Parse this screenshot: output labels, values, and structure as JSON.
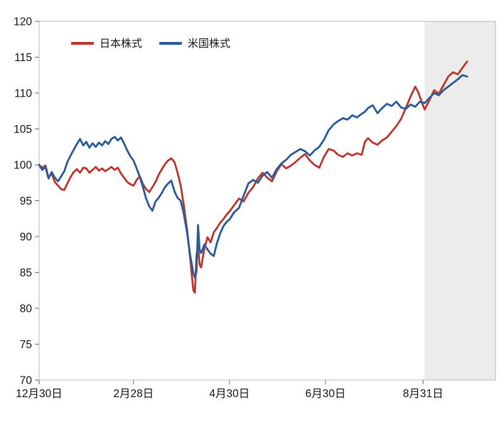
{
  "chart_data": {
    "type": "line",
    "title": "",
    "xlabel": "",
    "ylabel": "",
    "x_axis": {
      "unit": "days_from_dec30",
      "domain": [
        0,
        290
      ],
      "ticks": [
        {
          "x": 0,
          "label": "12月30日"
        },
        {
          "x": 60,
          "label": "2月28日"
        },
        {
          "x": 121,
          "label": "4月30日"
        },
        {
          "x": 182,
          "label": "6月30日"
        },
        {
          "x": 244,
          "label": "8月31日"
        }
      ]
    },
    "y_axis": {
      "domain": [
        70,
        120
      ],
      "ticks": [
        70,
        75,
        80,
        85,
        90,
        95,
        100,
        105,
        110,
        115,
        120
      ]
    },
    "grid": "off",
    "legend_position": "top-left-inside",
    "shaded_region": {
      "from": 245,
      "to": 290,
      "color": "#ececec"
    },
    "colors": {
      "japan": "#c0392f",
      "us": "#2e5d9e",
      "plot_border": "#bdbdbd",
      "tick": "#6e6e6e"
    },
    "legend": [
      {
        "id": "japan",
        "label": "日本株式",
        "color": "#c0392f"
      },
      {
        "id": "us",
        "label": "米国株式",
        "color": "#2e5d9e"
      }
    ],
    "series": [
      {
        "id": "japan-stocks",
        "name": "日本株式",
        "color": "#c0392f",
        "points": [
          [
            0,
            100.0
          ],
          [
            2,
            99.6
          ],
          [
            4,
            99.9
          ],
          [
            6,
            98.2
          ],
          [
            8,
            98.8
          ],
          [
            10,
            97.6
          ],
          [
            12,
            97.1
          ],
          [
            14,
            96.6
          ],
          [
            16,
            96.5
          ],
          [
            18,
            97.4
          ],
          [
            20,
            98.3
          ],
          [
            22,
            99.0
          ],
          [
            24,
            99.4
          ],
          [
            26,
            98.9
          ],
          [
            28,
            99.6
          ],
          [
            30,
            99.5
          ],
          [
            32,
            98.9
          ],
          [
            34,
            99.3
          ],
          [
            36,
            99.7
          ],
          [
            38,
            99.2
          ],
          [
            40,
            99.5
          ],
          [
            42,
            99.1
          ],
          [
            44,
            99.4
          ],
          [
            46,
            99.7
          ],
          [
            48,
            99.3
          ],
          [
            50,
            99.6
          ],
          [
            52,
            98.8
          ],
          [
            54,
            98.2
          ],
          [
            56,
            97.6
          ],
          [
            58,
            97.3
          ],
          [
            60,
            97.1
          ],
          [
            62,
            97.9
          ],
          [
            64,
            98.4
          ],
          [
            66,
            97.3
          ],
          [
            68,
            96.6
          ],
          [
            70,
            96.2
          ],
          [
            72,
            96.9
          ],
          [
            74,
            97.6
          ],
          [
            76,
            98.6
          ],
          [
            78,
            99.4
          ],
          [
            80,
            100.1
          ],
          [
            82,
            100.6
          ],
          [
            84,
            100.9
          ],
          [
            86,
            100.4
          ],
          [
            88,
            98.9
          ],
          [
            90,
            97.1
          ],
          [
            92,
            94.3
          ],
          [
            94,
            91.0
          ],
          [
            96,
            87.0
          ],
          [
            98,
            82.5
          ],
          [
            99,
            82.2
          ],
          [
            100,
            87.3
          ],
          [
            101,
            88.9
          ],
          [
            102,
            86.1
          ],
          [
            103,
            85.7
          ],
          [
            105,
            88.3
          ],
          [
            107,
            89.9
          ],
          [
            109,
            89.2
          ],
          [
            111,
            90.6
          ],
          [
            113,
            91.2
          ],
          [
            115,
            91.9
          ],
          [
            117,
            92.4
          ],
          [
            119,
            93.0
          ],
          [
            121,
            93.5
          ],
          [
            124,
            94.4
          ],
          [
            127,
            95.3
          ],
          [
            130,
            94.9
          ],
          [
            133,
            96.1
          ],
          [
            136,
            96.9
          ],
          [
            139,
            98.1
          ],
          [
            142,
            98.9
          ],
          [
            145,
            98.2
          ],
          [
            148,
            97.7
          ],
          [
            151,
            99.1
          ],
          [
            154,
            100.1
          ],
          [
            157,
            99.5
          ],
          [
            160,
            99.9
          ],
          [
            163,
            100.4
          ],
          [
            166,
            101.0
          ],
          [
            169,
            101.5
          ],
          [
            172,
            100.6
          ],
          [
            175,
            100.0
          ],
          [
            178,
            99.6
          ],
          [
            181,
            101.1
          ],
          [
            184,
            102.2
          ],
          [
            187,
            102.0
          ],
          [
            190,
            101.4
          ],
          [
            193,
            101.1
          ],
          [
            196,
            101.6
          ],
          [
            199,
            101.3
          ],
          [
            202,
            101.6
          ],
          [
            205,
            101.4
          ],
          [
            207,
            103.2
          ],
          [
            209,
            103.7
          ],
          [
            212,
            103.1
          ],
          [
            215,
            102.8
          ],
          [
            218,
            103.4
          ],
          [
            221,
            103.8
          ],
          [
            224,
            104.6
          ],
          [
            227,
            105.4
          ],
          [
            230,
            106.4
          ],
          [
            233,
            107.9
          ],
          [
            236,
            109.5
          ],
          [
            239,
            110.9
          ],
          [
            241,
            110.1
          ],
          [
            243,
            108.8
          ],
          [
            245,
            107.7
          ],
          [
            248,
            109.0
          ],
          [
            251,
            110.4
          ],
          [
            254,
            109.9
          ],
          [
            257,
            111.1
          ],
          [
            260,
            112.3
          ],
          [
            263,
            112.9
          ],
          [
            266,
            112.6
          ],
          [
            269,
            113.5
          ],
          [
            272,
            114.4
          ]
        ]
      },
      {
        "id": "us-stocks",
        "name": "米国株式",
        "color": "#2e5d9e",
        "points": [
          [
            0,
            100.0
          ],
          [
            2,
            99.3
          ],
          [
            4,
            99.7
          ],
          [
            6,
            98.1
          ],
          [
            8,
            99.0
          ],
          [
            10,
            98.2
          ],
          [
            12,
            97.7
          ],
          [
            14,
            98.4
          ],
          [
            16,
            99.1
          ],
          [
            18,
            100.4
          ],
          [
            20,
            101.3
          ],
          [
            22,
            102.1
          ],
          [
            24,
            102.9
          ],
          [
            26,
            103.6
          ],
          [
            28,
            102.7
          ],
          [
            30,
            103.2
          ],
          [
            32,
            102.4
          ],
          [
            34,
            103.0
          ],
          [
            36,
            102.5
          ],
          [
            38,
            103.1
          ],
          [
            40,
            102.7
          ],
          [
            42,
            103.3
          ],
          [
            44,
            102.9
          ],
          [
            46,
            103.6
          ],
          [
            48,
            103.9
          ],
          [
            50,
            103.4
          ],
          [
            52,
            103.8
          ],
          [
            54,
            103.0
          ],
          [
            56,
            102.0
          ],
          [
            58,
            101.2
          ],
          [
            60,
            100.6
          ],
          [
            62,
            99.5
          ],
          [
            64,
            98.3
          ],
          [
            66,
            96.9
          ],
          [
            68,
            95.3
          ],
          [
            70,
            94.2
          ],
          [
            72,
            93.6
          ],
          [
            74,
            94.9
          ],
          [
            76,
            95.4
          ],
          [
            78,
            96.1
          ],
          [
            80,
            96.9
          ],
          [
            82,
            97.4
          ],
          [
            84,
            97.8
          ],
          [
            86,
            96.3
          ],
          [
            88,
            95.4
          ],
          [
            90,
            95.0
          ],
          [
            92,
            93.1
          ],
          [
            94,
            90.6
          ],
          [
            96,
            87.4
          ],
          [
            98,
            84.9
          ],
          [
            99,
            84.3
          ],
          [
            100,
            85.1
          ],
          [
            101,
            91.6
          ],
          [
            102,
            88.2
          ],
          [
            103,
            87.7
          ],
          [
            105,
            88.9
          ],
          [
            107,
            88.2
          ],
          [
            109,
            87.6
          ],
          [
            111,
            87.3
          ],
          [
            113,
            89.1
          ],
          [
            115,
            90.4
          ],
          [
            117,
            91.4
          ],
          [
            119,
            92.0
          ],
          [
            121,
            92.4
          ],
          [
            124,
            93.4
          ],
          [
            127,
            94.0
          ],
          [
            130,
            95.7
          ],
          [
            133,
            97.4
          ],
          [
            136,
            97.9
          ],
          [
            139,
            97.5
          ],
          [
            142,
            98.5
          ],
          [
            145,
            99.0
          ],
          [
            148,
            98.2
          ],
          [
            151,
            99.4
          ],
          [
            154,
            100.2
          ],
          [
            157,
            100.7
          ],
          [
            160,
            101.4
          ],
          [
            163,
            101.8
          ],
          [
            166,
            102.2
          ],
          [
            169,
            101.9
          ],
          [
            172,
            101.3
          ],
          [
            175,
            102.0
          ],
          [
            178,
            102.5
          ],
          [
            181,
            103.5
          ],
          [
            184,
            104.8
          ],
          [
            187,
            105.6
          ],
          [
            190,
            106.1
          ],
          [
            193,
            106.5
          ],
          [
            196,
            106.3
          ],
          [
            199,
            106.9
          ],
          [
            202,
            106.6
          ],
          [
            205,
            107.1
          ],
          [
            207,
            107.4
          ],
          [
            209,
            107.9
          ],
          [
            212,
            108.3
          ],
          [
            215,
            107.2
          ],
          [
            218,
            107.9
          ],
          [
            221,
            108.5
          ],
          [
            224,
            108.2
          ],
          [
            227,
            108.8
          ],
          [
            230,
            108.0
          ],
          [
            233,
            107.8
          ],
          [
            236,
            108.4
          ],
          [
            239,
            108.1
          ],
          [
            242,
            108.8
          ],
          [
            245,
            108.6
          ],
          [
            248,
            109.3
          ],
          [
            251,
            110.0
          ],
          [
            254,
            109.7
          ],
          [
            257,
            110.4
          ],
          [
            260,
            110.9
          ],
          [
            263,
            111.4
          ],
          [
            266,
            111.9
          ],
          [
            269,
            112.5
          ],
          [
            272,
            112.3
          ]
        ]
      }
    ]
  }
}
